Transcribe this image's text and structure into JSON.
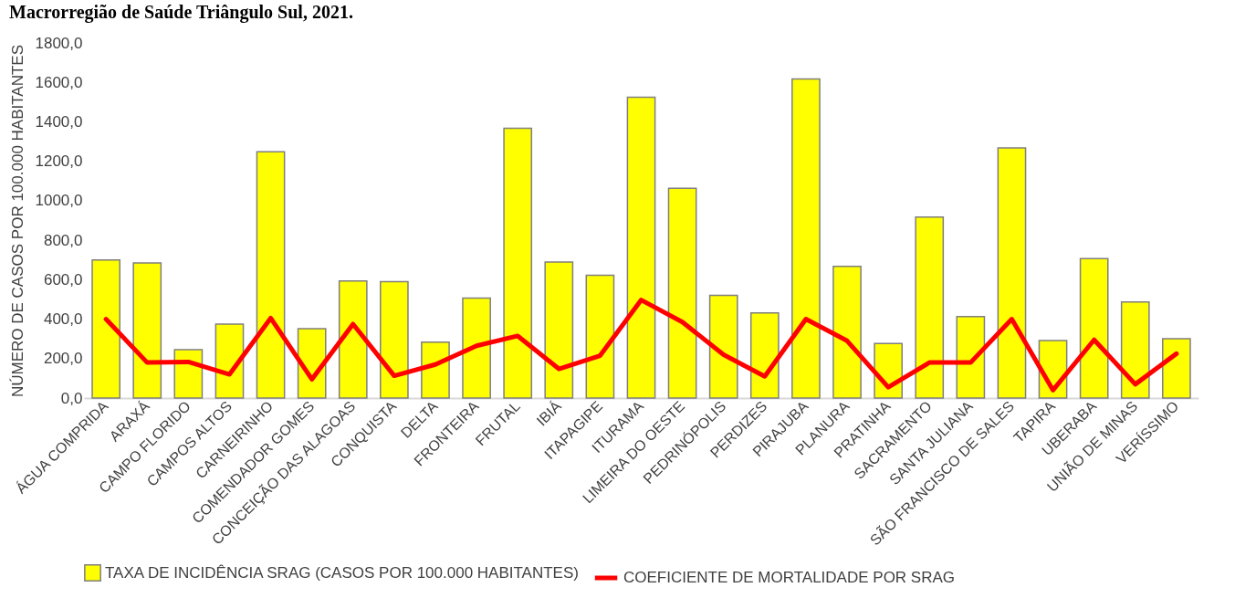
{
  "chart_data": {
    "type": "bar",
    "title": "Macrorregião de Saúde Triângulo Sul, 2021.",
    "ylabel": "NÚMERO DE CASOS POR 100.000 HABITANTES",
    "categories": [
      "ÁGUA COMPRIDA",
      "ARAXÁ",
      "CAMPO FLORIDO",
      "CAMPOS ALTOS",
      "CARNEIRINHO",
      "COMENDADOR GOMES",
      "CONCEIÇÃO DAS ALAGOAS",
      "CONQUISTA",
      "DELTA",
      "FRONTEIRA",
      "FRUTAL",
      "IBIÁ",
      "ITAPAGIPE",
      "ITURAMA",
      "LIMEIRA DO OESTE",
      "PEDRINÓPOLIS",
      "PERDIZES",
      "PIRAJUBA",
      "PLANURA",
      "PRATINHA",
      "SACRAMENTO",
      "SANTA JULIANA",
      "SÃO FRANCISCO DE SALES",
      "TAPIRA",
      "UBERABA",
      "UNIÃO DE MINAS",
      "VERÍSSIMO"
    ],
    "series": [
      {
        "name": "TAXA DE INCIDÊNCIA SRAG  (CASOS POR 100.000 HABITANTES)",
        "color": "#ffff00",
        "values": [
          700,
          685,
          245,
          375,
          1248,
          352,
          593,
          590,
          283,
          507,
          1367,
          690,
          622,
          1525,
          1063,
          520,
          432,
          1617,
          667,
          277,
          917,
          413,
          1268,
          292,
          707,
          487,
          301
        ]
      },
      {
        "name": "COEFICIENTE DE MORTALIDADE POR SRAG",
        "type": "line",
        "color": "#ff0000",
        "values": [
          400,
          180,
          183,
          120,
          405,
          95,
          375,
          113,
          170,
          265,
          315,
          148,
          215,
          497,
          385,
          220,
          110,
          400,
          290,
          55,
          180,
          180,
          400,
          40,
          295,
          70,
          225
        ]
      }
    ],
    "ylim": [
      0,
      1800
    ],
    "yticks": [
      {
        "value": 0,
        "label": "0,0"
      },
      {
        "value": 200,
        "label": "200,0"
      },
      {
        "value": 400,
        "label": "400,0"
      },
      {
        "value": 600,
        "label": "600,0"
      },
      {
        "value": 800,
        "label": "800,0"
      },
      {
        "value": 1000,
        "label": "1000,0"
      },
      {
        "value": 1200,
        "label": "1200,0"
      },
      {
        "value": 1400,
        "label": "1400,0"
      },
      {
        "value": 1600,
        "label": "1600,0"
      },
      {
        "value": 1800,
        "label": "1800,0"
      }
    ],
    "grid": false,
    "legend": "bottom"
  }
}
